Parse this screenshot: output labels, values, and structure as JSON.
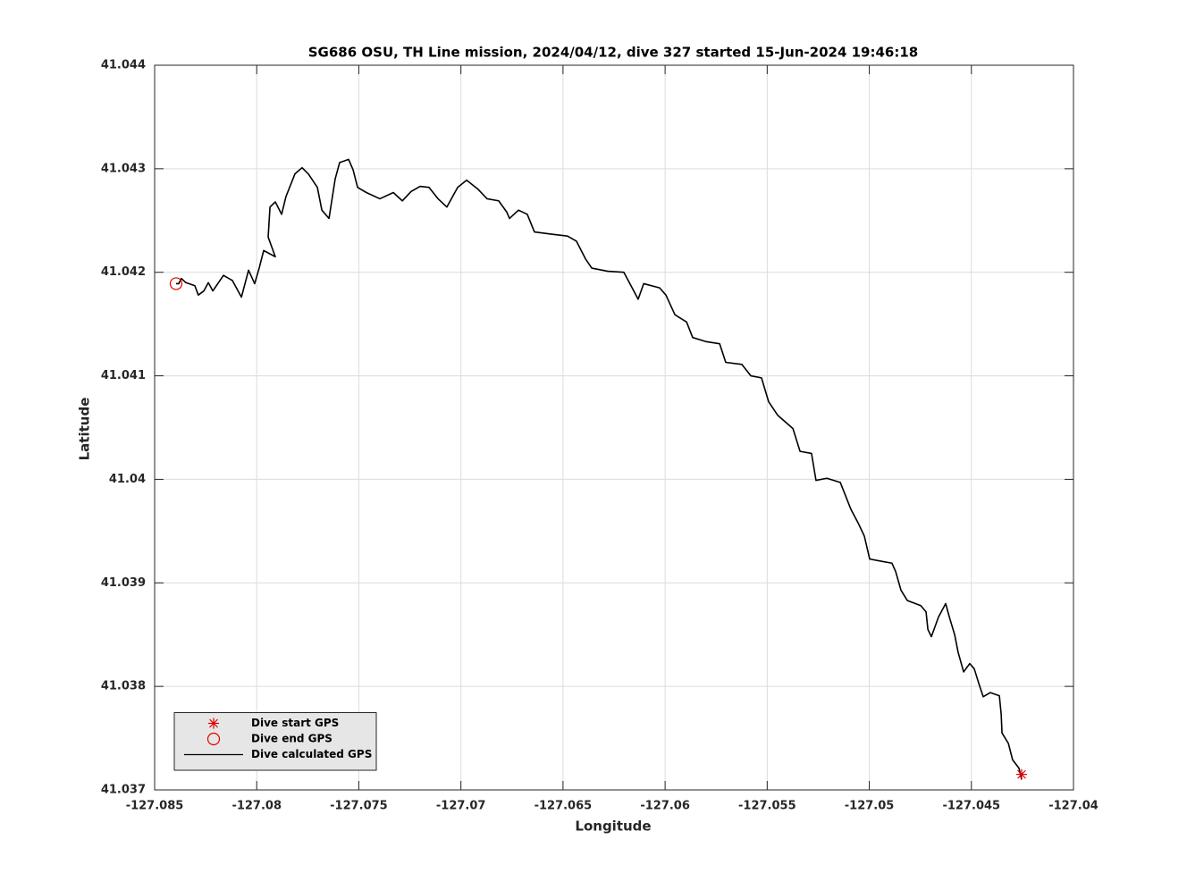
{
  "chart_data": {
    "type": "line",
    "title": "SG686 OSU, TH Line mission, 2024/04/12, dive 327 started 15-Jun-2024 19:46:18",
    "xlabel": "Longitude",
    "ylabel": "Latitude",
    "xlim": [
      -127.085,
      -127.04
    ],
    "ylim": [
      41.037,
      41.044
    ],
    "xticks": [
      -127.085,
      -127.08,
      -127.075,
      -127.07,
      -127.065,
      -127.06,
      -127.055,
      -127.05,
      -127.045,
      -127.04
    ],
    "yticks": [
      41.037,
      41.038,
      41.039,
      41.04,
      41.041,
      41.042,
      41.043,
      41.044
    ],
    "grid": true,
    "legend": "lower left",
    "series": [
      {
        "name": "Dive start GPS",
        "color": "#e00000",
        "marker": "asterisk",
        "x": [
          -127.04254
        ],
        "y": [
          41.03715
        ]
      },
      {
        "name": "Dive end GPS",
        "color": "#e00000",
        "marker": "circle",
        "x": [
          -127.08395
        ],
        "y": [
          41.04189
        ]
      },
      {
        "name": "Dive calculated GPS",
        "color": "#000000",
        "marker": "line",
        "x": [
          -127.04254,
          -127.04267,
          -127.04298,
          -127.04319,
          -127.0435,
          -127.04354,
          -127.04363,
          -127.04407,
          -127.04442,
          -127.04464,
          -127.04486,
          -127.04508,
          -127.04538,
          -127.04565,
          -127.04582,
          -127.04608,
          -127.04626,
          -127.04661,
          -127.04696,
          -127.04713,
          -127.04722,
          -127.04748,
          -127.04814,
          -127.04845,
          -127.04871,
          -127.04889,
          -127.04945,
          -127.04998,
          -127.05024,
          -127.05055,
          -127.0509,
          -127.05116,
          -127.05142,
          -127.05208,
          -127.05261,
          -127.05283,
          -127.05339,
          -127.05374,
          -127.05449,
          -127.05493,
          -127.05528,
          -127.0558,
          -127.05624,
          -127.05703,
          -127.05733,
          -127.05799,
          -127.05865,
          -127.05895,
          -127.05952,
          -127.05996,
          -127.06027,
          -127.06105,
          -127.06132,
          -127.06167,
          -127.06202,
          -127.06281,
          -127.06359,
          -127.0639,
          -127.06434,
          -127.06478,
          -127.06565,
          -127.0664,
          -127.06675,
          -127.06718,
          -127.06762,
          -127.06775,
          -127.06815,
          -127.06872,
          -127.06915,
          -127.06972,
          -127.07016,
          -127.07069,
          -127.07112,
          -127.07156,
          -127.072,
          -127.07244,
          -127.07287,
          -127.07331,
          -127.07397,
          -127.07463,
          -127.07506,
          -127.07528,
          -127.0755,
          -127.07594,
          -127.07616,
          -127.07646,
          -127.07681,
          -127.07703,
          -127.07747,
          -127.07778,
          -127.07813,
          -127.07857,
          -127.07878,
          -127.07909,
          -127.07935,
          -127.07944,
          -127.07909,
          -127.07966,
          -127.07988,
          -127.0801,
          -127.0804,
          -127.08075,
          -127.08119,
          -127.08163,
          -127.08215,
          -127.08237,
          -127.08259,
          -127.08286,
          -127.08303,
          -127.08347,
          -127.08369,
          -127.08382,
          -127.08395
        ],
        "y": [
          41.0371,
          41.03721,
          41.03729,
          41.03745,
          41.03755,
          41.03773,
          41.03791,
          41.03794,
          41.0379,
          41.03803,
          41.03817,
          41.03822,
          41.03814,
          41.03833,
          41.0385,
          41.03867,
          41.0388,
          41.03867,
          41.03848,
          41.03855,
          41.03872,
          41.03878,
          41.03883,
          41.03893,
          41.03911,
          41.03919,
          41.03921,
          41.03923,
          41.03945,
          41.03958,
          41.03971,
          41.03984,
          41.03997,
          41.04001,
          41.03999,
          41.04025,
          41.04027,
          41.04049,
          41.04062,
          41.04075,
          41.04098,
          41.041,
          41.04111,
          41.04113,
          41.04131,
          41.04133,
          41.04137,
          41.04152,
          41.04159,
          41.04178,
          41.04185,
          41.04189,
          41.04174,
          41.04187,
          41.042,
          41.04201,
          41.04204,
          41.04213,
          41.0423,
          41.04235,
          41.04237,
          41.04239,
          41.04256,
          41.0426,
          41.04252,
          41.04258,
          41.04269,
          41.04271,
          41.0428,
          41.04289,
          41.04282,
          41.04263,
          41.04271,
          41.04282,
          41.04283,
          41.04278,
          41.04269,
          41.04277,
          41.04271,
          41.04277,
          41.04282,
          41.04299,
          41.04309,
          41.04306,
          41.0429,
          41.04252,
          41.0426,
          41.04282,
          41.04295,
          41.04301,
          41.04295,
          41.04273,
          41.04256,
          41.04268,
          41.04263,
          41.04234,
          41.04215,
          41.04221,
          41.04204,
          41.04189,
          41.04202,
          41.04176,
          41.04192,
          41.04197,
          41.04182,
          41.0419,
          41.04182,
          41.04178,
          41.04187,
          41.0419,
          41.04194,
          41.04189,
          41.04189
        ]
      }
    ]
  }
}
